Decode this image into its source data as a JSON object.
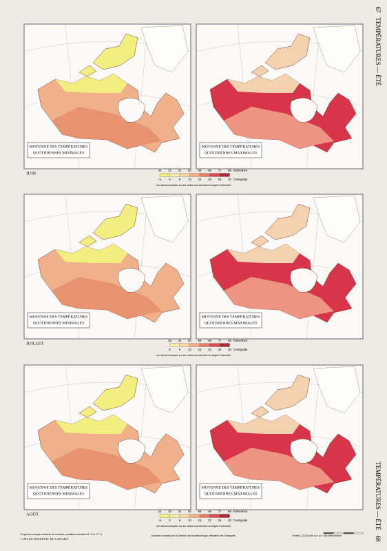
{
  "page_number_top": "67",
  "running_title_top": "TEMPÉRATURES — ÉTÉ",
  "running_title_bottom": "TEMPÉRATURES — ÉTÉ",
  "page_number_bottom": "68",
  "rows": [
    {
      "month": "JUIN",
      "maps": [
        {
          "caption": [
            "MOYENNE DES TEMPÉRATURES",
            "QUOTIDIENNES MINIMALES"
          ]
        },
        {
          "caption": [
            "MOYENNE DES TEMPÉRATURES",
            "QUOTIDIENNES MAXIMALES"
          ]
        }
      ],
      "legend": {
        "fahrenheit": [
          23,
          32,
          41,
          50,
          59,
          68,
          77,
          86
        ],
        "centigrade": [
          -5,
          0,
          5,
          10,
          15,
          20,
          25,
          30
        ],
        "fahrenheit_label": "Fahrenheit",
        "centigrade_label": "Centigrade",
        "colors": [
          "#f3ef7a",
          "#f6ecae",
          "#f6d3a8",
          "#f0ae86",
          "#e87c68",
          "#d94a52",
          "#a8283a"
        ],
        "note": "Les valeurs indiquées sur les cartes sont données en degrés Fahrenheit."
      }
    },
    {
      "month": "JUILLET",
      "maps": [
        {
          "caption": [
            "MOYENNE DES TEMPÉRATURES",
            "QUOTIDIENNES MINIMALES"
          ]
        },
        {
          "caption": [
            "MOYENNE DES TEMPÉRATURES",
            "QUOTIDIENNES MAXIMALES"
          ]
        }
      ],
      "legend": {
        "fahrenheit": [
          32,
          41,
          50,
          59,
          68,
          77,
          86
        ],
        "centigrade": [
          0,
          5,
          10,
          15,
          20,
          25,
          30
        ],
        "fahrenheit_label": "Fahrenheit",
        "centigrade_label": "Centigrade",
        "colors": [
          "#f6ecae",
          "#f6d3a8",
          "#f0ae86",
          "#e87c68",
          "#d94a52",
          "#a8283a"
        ],
        "note": "Les valeurs indiquées sur les cartes sont données en degrés Fahrenheit."
      }
    },
    {
      "month": "AOÛT",
      "maps": [
        {
          "caption": [
            "MOYENNE DES TEMPÉRATURES",
            "QUOTIDIENNES MINIMALES"
          ]
        },
        {
          "caption": [
            "MOYENNE DES TEMPÉRATURES",
            "QUOTIDIENNES MAXIMALES"
          ]
        }
      ],
      "legend": {
        "fahrenheit": [
          23,
          32,
          41,
          50,
          59,
          68,
          77,
          86
        ],
        "centigrade": [
          -5,
          0,
          5,
          10,
          15,
          20,
          25,
          30
        ],
        "fahrenheit_label": "Fahrenheit",
        "centigrade_label": "Centigrade",
        "colors": [
          "#f3ef7a",
          "#f6ecae",
          "#f6d3a8",
          "#f0ae86",
          "#e87c68",
          "#d94a52",
          "#a8283a"
        ],
        "note": "Les valeurs indiquées sur les cartes sont données en degrés Fahrenheit."
      }
    }
  ],
  "footer": {
    "projection": "Projection conique conforme de Lambert, parallèles standard 49° N et 77° N",
    "atlas": "L'ATLAS NATIONAL DU CANADA",
    "source": "Données fournies par la Direction de la météorologie, Ministère des Transports",
    "scale": "Échelle 1:20,000,000 ou 1 po = 316 milles environ"
  }
}
